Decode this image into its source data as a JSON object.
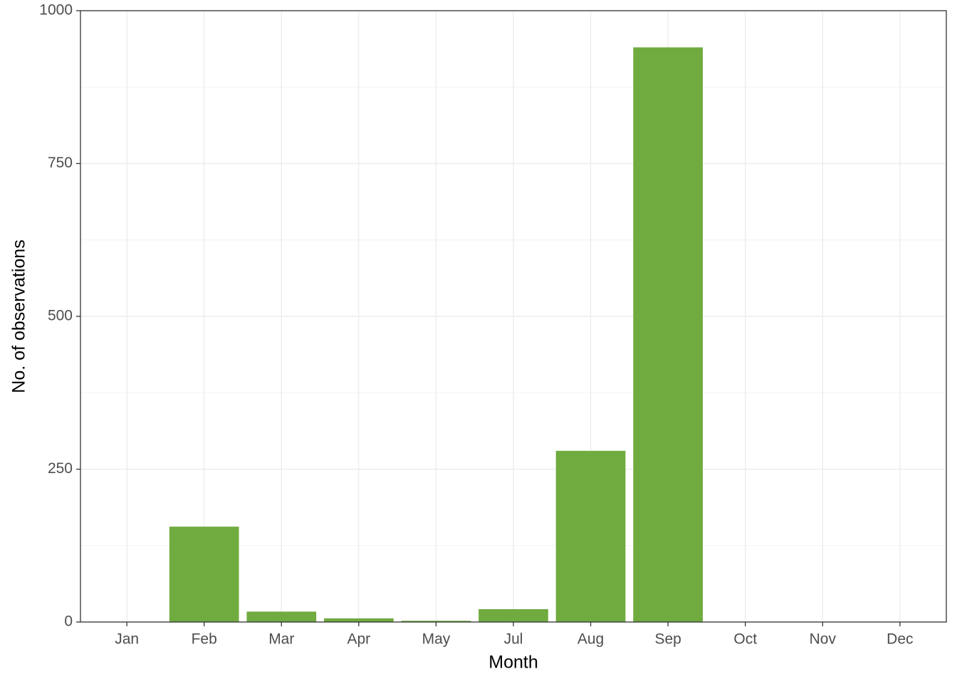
{
  "chart_data": {
    "type": "bar",
    "x_label": "Month",
    "y_label": "No. of observations",
    "categories": [
      "Jan",
      "Feb",
      "Mar",
      "Apr",
      "May",
      "Jul",
      "Aug",
      "Sep",
      "Oct",
      "Nov",
      "Dec"
    ],
    "values": [
      0,
      156,
      17,
      6,
      2,
      21,
      280,
      940,
      0,
      0,
      0
    ],
    "color": "#70ab3f",
    "ylim": [
      0,
      1000
    ],
    "yticks": [
      0,
      250,
      500,
      750,
      1000
    ],
    "grid": true
  }
}
